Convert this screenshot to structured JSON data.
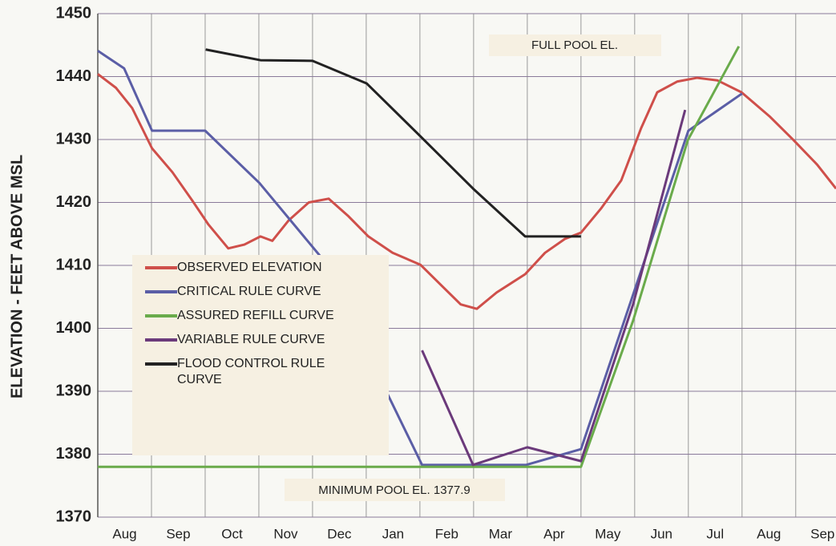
{
  "chart_data": {
    "type": "line",
    "y_label": "ELEVATION - FEET ABOVE MSL",
    "categories": [
      "Aug",
      "Sep",
      "Oct",
      "Nov",
      "Dec",
      "Jan",
      "Feb",
      "Mar",
      "Apr",
      "May",
      "Jun",
      "Jul",
      "Aug",
      "Sep"
    ],
    "xlim": [
      0,
      13.75
    ],
    "ylim": [
      1370,
      1450
    ],
    "yticks": [
      1370,
      1380,
      1390,
      1400,
      1410,
      1420,
      1430,
      1440,
      1450
    ],
    "grid": true,
    "annotations": [
      "FULL POOL EL.",
      "MINIMUM POOL EL. 1377.9"
    ],
    "series": [
      {
        "name": "OBSERVED ELEVATION",
        "color": "#cf4f4a",
        "x": [
          0,
          0.34,
          0.64,
          1.01,
          1.39,
          1.76,
          2.06,
          2.43,
          2.73,
          3.03,
          3.25,
          3.55,
          3.93,
          4.3,
          4.67,
          5.04,
          5.49,
          6.01,
          6.39,
          6.76,
          7.06,
          7.43,
          7.96,
          8.33,
          8.7,
          9.0,
          9.37,
          9.75,
          10.12,
          10.42,
          10.79,
          11.16,
          11.54,
          11.99,
          12.51,
          12.96,
          13.4,
          13.75
        ],
        "values": [
          1440.4,
          1438.2,
          1435,
          1428.6,
          1424.8,
          1420.3,
          1416.5,
          1412.7,
          1413.3,
          1414.6,
          1413.9,
          1417.1,
          1420,
          1420.6,
          1417.8,
          1414.6,
          1412,
          1410.1,
          1406.9,
          1403.8,
          1403.1,
          1405.7,
          1408.6,
          1412,
          1414.2,
          1415.2,
          1419,
          1423.5,
          1431.8,
          1437.5,
          1439.2,
          1439.8,
          1439.4,
          1437.5,
          1433.7,
          1429.9,
          1426,
          1422.2
        ]
      },
      {
        "name": "CRITICAL RULE CURVE",
        "color": "#5b5ea6",
        "x": [
          0,
          0.49,
          1.01,
          2.0,
          3.01,
          4.15,
          6.04,
          7.98,
          9.0,
          11.0,
          12.0
        ],
        "values": [
          1444.1,
          1441.3,
          1431.4,
          1431.4,
          1423.1,
          1411.4,
          1378.3,
          1378.3,
          1380.8,
          1431.4,
          1437.3
        ]
      },
      {
        "name": "ASSURED REFILL CURVE",
        "color": "#6aab4b",
        "x": [
          0,
          9.0,
          9.97,
          10.99,
          11.94
        ],
        "values": [
          1378,
          1378,
          1401.2,
          1429.9,
          1444.8
        ]
      },
      {
        "name": "VARIABLE RULE CURVE",
        "color": "#6b3a7b",
        "x": [
          6.04,
          6.99,
          8.0,
          9.0,
          9.97,
          10.94
        ],
        "values": [
          1396.5,
          1378.3,
          1381.1,
          1378.9,
          1403.8,
          1434.7
        ]
      },
      {
        "name": "FLOOD CONTROL RULE CURVE",
        "color": "#222222",
        "x": [
          2.01,
          3.03,
          4.0,
          5.01,
          6.01,
          6.99,
          7.96,
          9.0
        ],
        "values": [
          1444.3,
          1442.6,
          1442.5,
          1438.9,
          1430.5,
          1422.2,
          1414.6,
          1414.6
        ]
      }
    ]
  }
}
